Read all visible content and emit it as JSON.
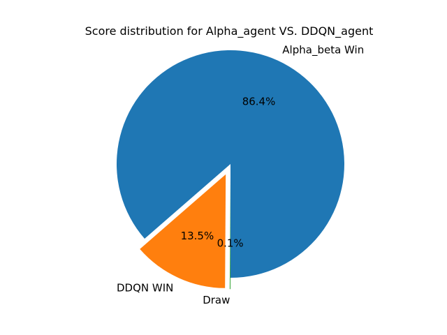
{
  "chart_data": {
    "type": "pie",
    "title": "Score distribution for Alpha_agent VS. DDQN_agent",
    "labels": [
      "Alpha_beta Win",
      "DDQN WIN",
      "Draw"
    ],
    "values": [
      86.4,
      13.5,
      0.1
    ],
    "percent_labels": [
      "86.4%",
      "13.5%",
      "0.1%"
    ],
    "colors": [
      "#1f77b4",
      "#ff7f0e",
      "#2ca02c"
    ],
    "exploded": [
      false,
      true,
      true
    ],
    "start_angle_deg": 270,
    "direction": "counterclockwise",
    "legend": "none"
  }
}
